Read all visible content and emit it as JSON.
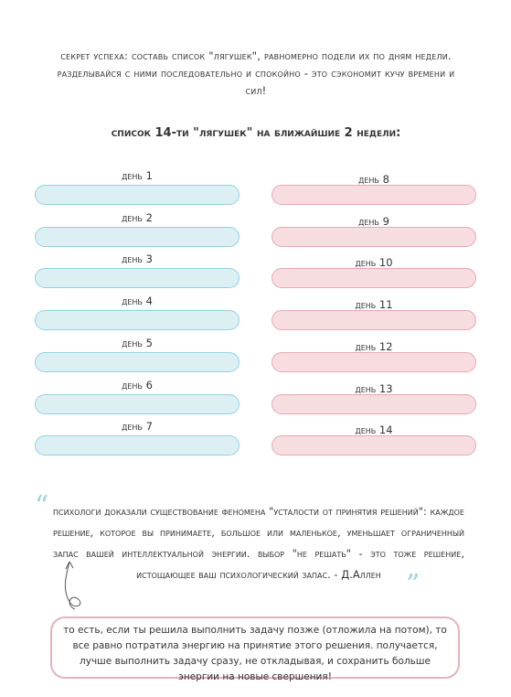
{
  "intro": "секрет успеха: составь список \"лягушек\", равномерно подели их по дням недели. разделывайся с ними последовательно и спокойно - это сэкономит кучу времени и сил!",
  "heading": "список 14-ти \"лягушек\" на ближайшие 2 недели:",
  "days": [
    "день 1",
    "день 2",
    "день 3",
    "день 4",
    "день 5",
    "день 6",
    "день 7",
    "день 8",
    "день 9",
    "день 10",
    "день 11",
    "день 12",
    "день 13",
    "день 14"
  ],
  "quote": "психологи доказали существование феномена \"усталости от принятия решений\": каждое решение, которое вы принимаете, большое или маленькое, уменьшает ограниченный запас вашей интеллектуальной энергии. выбор \"не решать\" - это тоже решение, истощающее ваш психологический запас. - Д.Аллен",
  "note": "то есть, если ты решила выполнить задачу позже (отложила на потом), то все равно потратила энергию на принятие этого решения. получается, лучше выполнить задачу сразу, не откладывая, и сохранить больше энергии на новые свершения!"
}
